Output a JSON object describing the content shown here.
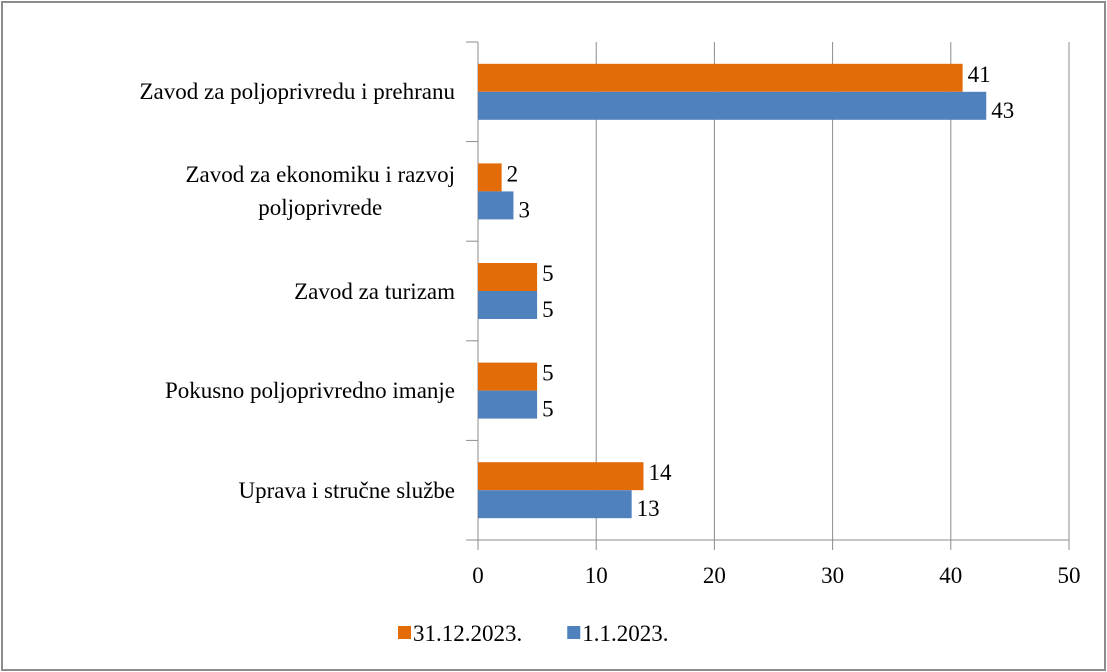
{
  "chart_data": {
    "type": "bar",
    "orientation": "horizontal",
    "categories": [
      "Zavod za poljoprivredu i prehranu",
      "Zavod za ekonomiku i razvoj\npoljoprivrede",
      "Zavod za turizam",
      "Pokusno poljoprivredno imanje",
      "Uprava i stručne službe"
    ],
    "series": [
      {
        "name": "31.12.2023.",
        "color": "#e36c09",
        "values": [
          41,
          2,
          5,
          5,
          14
        ]
      },
      {
        "name": "1.1.2023.",
        "color": "#4f81bd",
        "values": [
          43,
          3,
          5,
          5,
          13
        ]
      }
    ],
    "xlim": [
      0,
      50
    ],
    "xticks": [
      0,
      10,
      20,
      30,
      40,
      50
    ],
    "grid": true,
    "legend": "bottom"
  }
}
